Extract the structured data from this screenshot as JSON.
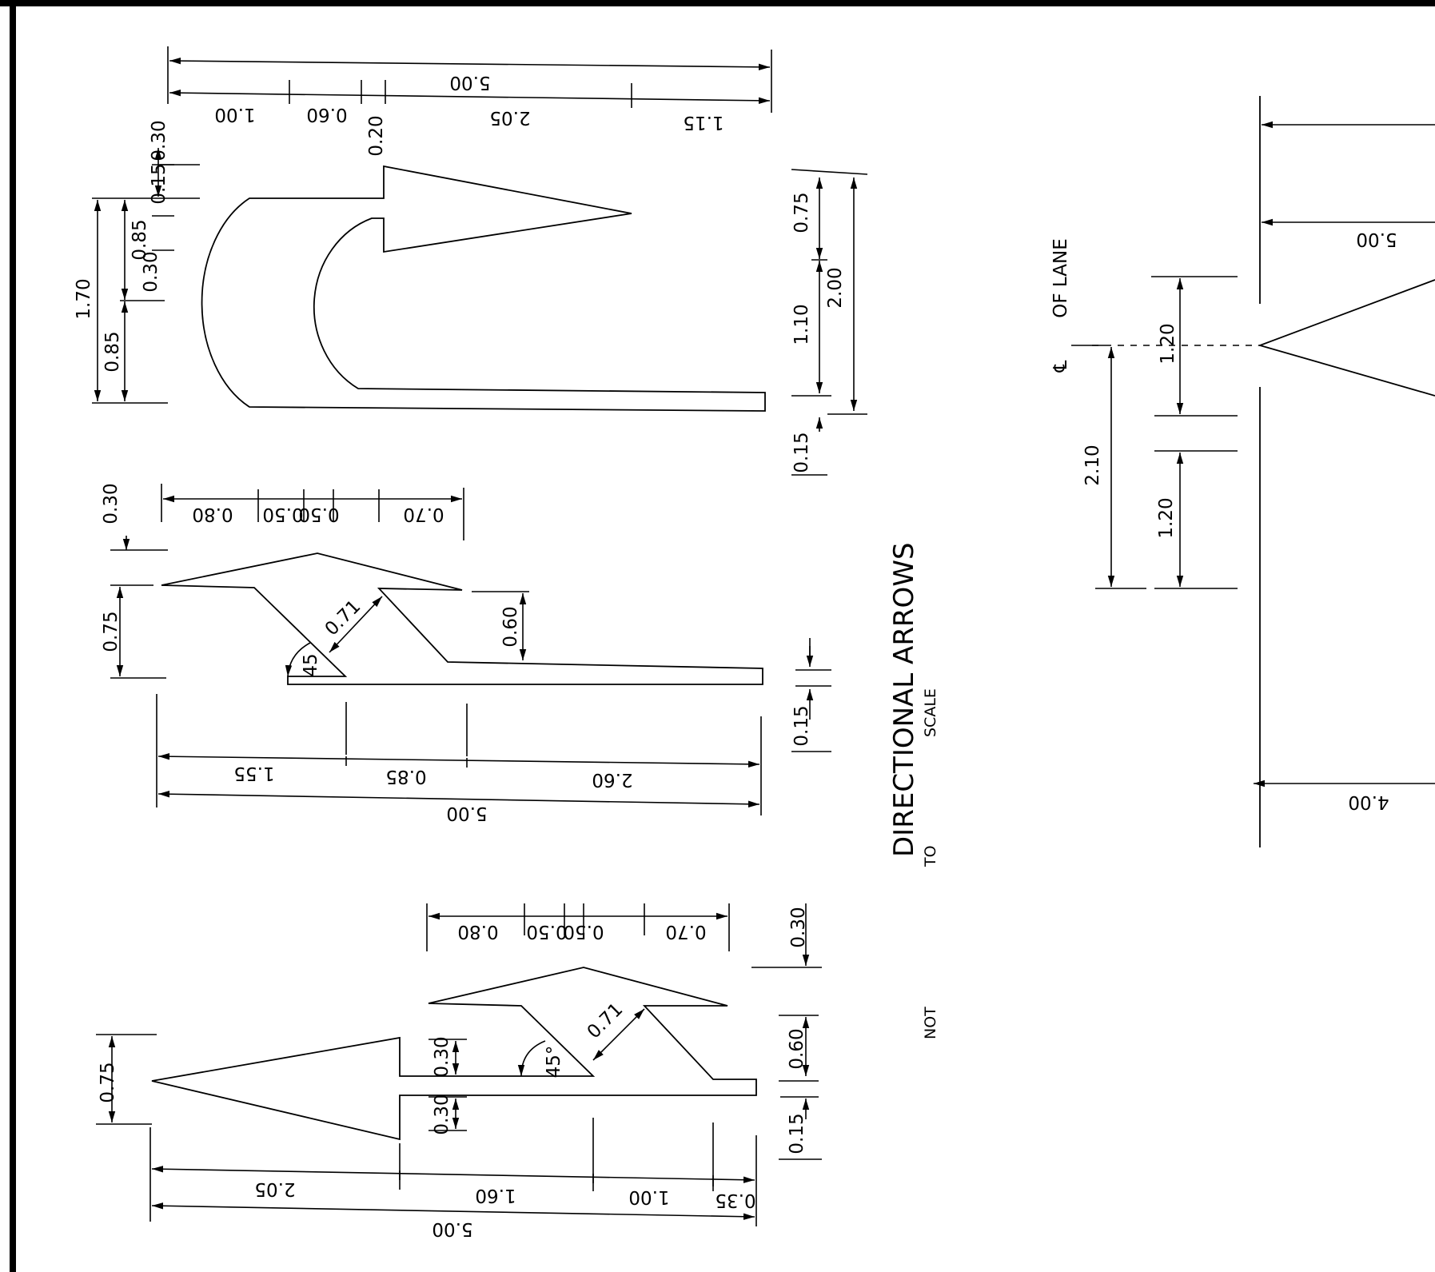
{
  "title": {
    "main": "DIRECTIONAL ARROWS",
    "sub_1": "NOT",
    "sub_2": "TO",
    "sub_3": "SCALE"
  },
  "u_turn_arrow": {
    "length_total": "5.00",
    "seg_a": "1.00",
    "seg_b": "0.60",
    "seg_c": "0.20",
    "seg_d": "2.05",
    "seg_e": "1.15",
    "head_30": "0.30",
    "stem_15": "0.15",
    "gap_30": "0.30",
    "width_85_a": "0.85",
    "width_85_b": "0.85",
    "width_total": "1.70",
    "head_75": "0.75",
    "inner_110": "1.10",
    "total_200": "2.00",
    "tail_15": "0.15"
  },
  "turn_arrow": {
    "head_30": "0.30",
    "seg_80": "0.80",
    "seg_50a": "0.50",
    "seg_50b": "0.50",
    "seg_70": "0.70",
    "width_75": "0.75",
    "diag_71": "0.71",
    "angle_45": "45",
    "stem_60": "0.60",
    "tail_15": "0.15",
    "seg_155": "1.55",
    "seg_85": "0.85",
    "seg_260": "2.60",
    "length_total": "5.00"
  },
  "combo_arrow": {
    "head_75": "0.75",
    "seg_80": "0.80",
    "seg_50a": "0.50",
    "seg_50b": "0.50",
    "seg_70": "0.70",
    "head_30": "0.30",
    "offset_30a": "0.30",
    "offset_30b": "0.30",
    "angle_45": "45°",
    "diag_71": "0.71",
    "stem_60": "0.60",
    "tail_15": "0.15",
    "seg_205": "2.05",
    "seg_160": "1.60",
    "seg_100": "1.00",
    "seg_35": "0.35",
    "length_total": "5.00"
  },
  "lane_arrow": {
    "centerline": "OF LANE",
    "centerline_symbol": "℄",
    "seg_120a": "1.20",
    "seg_210": "2.10",
    "seg_120b": "1.20",
    "len_500": "5.00",
    "len_400": "4.00"
  }
}
